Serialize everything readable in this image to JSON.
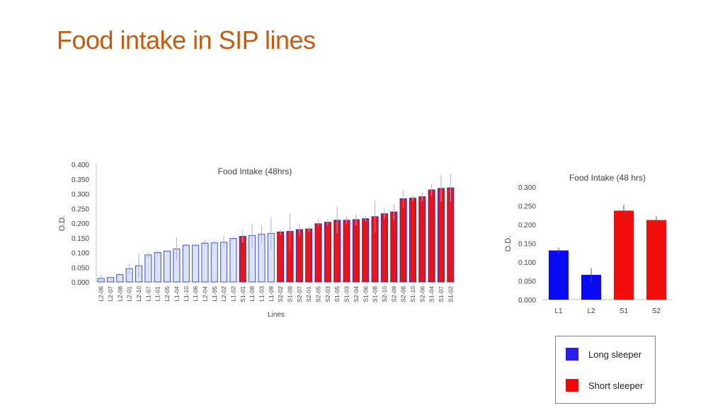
{
  "slide": {
    "title": "Food intake in SIP lines"
  },
  "chart_data": [
    {
      "type": "bar",
      "title": "Food Intake (48hrs)",
      "xlabel": "Lines",
      "ylabel": "O.D.",
      "ylim": [
        0,
        0.4
      ],
      "yticks": [
        "0.000",
        "0.050",
        "0.100",
        "0.150",
        "0.200",
        "0.250",
        "0.300",
        "0.350",
        "0.400"
      ],
      "grid": false,
      "categories": [
        "L2-06",
        "L2-07",
        "L2-08",
        "L2-01",
        "L2-10",
        "L1-07",
        "L1-01",
        "L2-05",
        "L1-04",
        "L1-10",
        "L1-06",
        "L2-04",
        "L1-05",
        "L2-02",
        "L1-02",
        "S1-01",
        "L1-08",
        "L1-03",
        "L1-09",
        "S2-02",
        "S1-09",
        "S2-07",
        "S2-01",
        "S2-05",
        "S2-03",
        "S1-05",
        "S1-03",
        "S2-04",
        "S1-06",
        "S1-08",
        "S2-10",
        "S2-09",
        "S2-08",
        "S1-10",
        "S2-06",
        "S1-04",
        "S1-07",
        "S1-02"
      ],
      "values": [
        0.012,
        0.015,
        0.025,
        0.045,
        0.055,
        0.092,
        0.1,
        0.105,
        0.112,
        0.125,
        0.125,
        0.132,
        0.133,
        0.135,
        0.148,
        0.155,
        0.158,
        0.162,
        0.165,
        0.17,
        0.172,
        0.178,
        0.18,
        0.198,
        0.203,
        0.21,
        0.21,
        0.212,
        0.215,
        0.222,
        0.232,
        0.238,
        0.283,
        0.285,
        0.29,
        0.313,
        0.318,
        0.32
      ],
      "errors": [
        0.012,
        0.005,
        0.004,
        0.018,
        0.04,
        0.01,
        0.008,
        0.005,
        0.04,
        0.006,
        0.005,
        0.012,
        0.008,
        0.022,
        0.005,
        0.022,
        0.04,
        0.03,
        0.055,
        0.01,
        0.06,
        0.02,
        0.01,
        0.015,
        0.012,
        0.045,
        0.015,
        0.02,
        0.01,
        0.055,
        0.018,
        0.025,
        0.03,
        0.01,
        0.015,
        0.02,
        0.045,
        0.048
      ],
      "groups": [
        "long",
        "long",
        "long",
        "long",
        "long",
        "long",
        "long",
        "long",
        "long",
        "long",
        "long",
        "long",
        "long",
        "long",
        "long",
        "short",
        "long",
        "long",
        "long",
        "short",
        "short",
        "short",
        "short",
        "short",
        "short",
        "short",
        "short",
        "short",
        "short",
        "short",
        "short",
        "short",
        "short",
        "short",
        "short",
        "short",
        "short",
        "short"
      ],
      "colors": {
        "long_fill": "#dde3f7",
        "long_edge": "#3f4fd0",
        "short_fill": "#e8141a",
        "short_edge": "#3a2aa8",
        "error": "#9fb4e6"
      }
    },
    {
      "type": "bar",
      "title": "Food Intake (48 hrs)",
      "xlabel": "",
      "ylabel": "O.D.",
      "ylim": [
        0,
        0.3
      ],
      "yticks": [
        "0.000",
        "0.050",
        "0.100",
        "0.150",
        "0.200",
        "0.250",
        "0.300"
      ],
      "grid": false,
      "categories": [
        "L1",
        "L2",
        "S1",
        "S2"
      ],
      "values": [
        0.131,
        0.066,
        0.237,
        0.212
      ],
      "errors": [
        0.008,
        0.018,
        0.015,
        0.01
      ],
      "colors": [
        "#0a0af5",
        "#0a0af5",
        "#f20d0d",
        "#f20d0d"
      ]
    }
  ],
  "legend": {
    "placement": "bottom-right",
    "items": [
      {
        "label": "Long sleeper",
        "color": "#2a1cf0"
      },
      {
        "label": "Short sleeper",
        "color": "#f00a0a"
      }
    ]
  }
}
